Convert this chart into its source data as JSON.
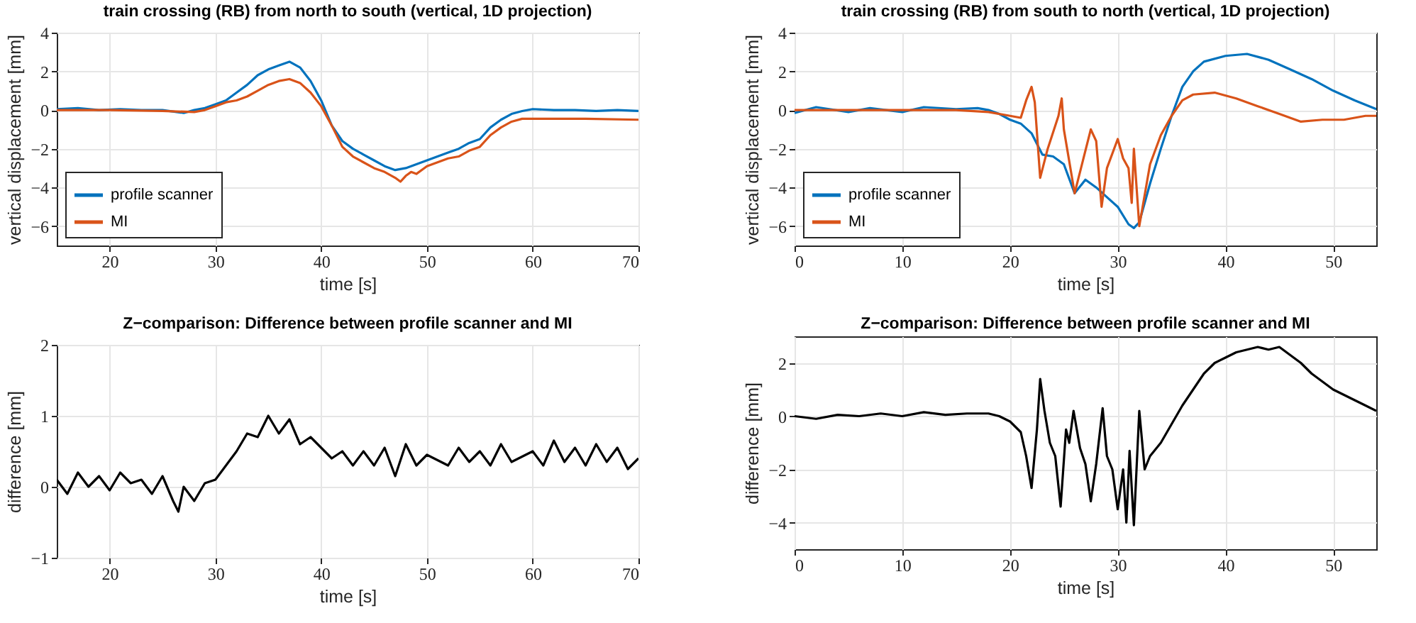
{
  "chart_data": [
    {
      "type": "line",
      "title": "train crossing (RB) from north to south (vertical, 1D projection)",
      "xlabel": "time [s]",
      "ylabel": "vertical displacement [mm]",
      "xlim": [
        15,
        70
      ],
      "xticks": [
        20,
        30,
        40,
        50,
        60,
        70
      ],
      "ylim": [
        -7,
        4
      ],
      "yticks": [
        -6,
        -4,
        -2,
        0,
        2,
        4
      ],
      "grid": true,
      "legend": "bottom left",
      "series": [
        {
          "name": "profile scanner",
          "color": "#0072bd",
          "x": [
            15,
            17,
            19,
            21,
            23,
            25,
            27,
            28,
            29,
            30,
            31,
            32,
            33,
            34,
            35,
            36,
            37,
            38,
            39,
            40,
            41,
            42,
            43,
            44,
            45,
            46,
            47,
            48,
            49,
            50,
            51,
            52,
            53,
            54,
            55,
            56,
            57,
            58,
            59,
            60,
            62,
            64,
            66,
            68,
            70
          ],
          "values": [
            0.05,
            0.1,
            0,
            0.05,
            0,
            0,
            -0.15,
            0,
            0.1,
            0.3,
            0.5,
            0.9,
            1.3,
            1.8,
            2.1,
            2.3,
            2.5,
            2.2,
            1.5,
            0.5,
            -0.8,
            -1.6,
            -2,
            -2.3,
            -2.6,
            -2.9,
            -3.1,
            -3,
            -2.8,
            -2.6,
            -2.4,
            -2.2,
            -2,
            -1.7,
            -1.5,
            -0.9,
            -0.5,
            -0.2,
            -0.05,
            0.05,
            0,
            0,
            -0.05,
            0,
            -0.05
          ]
        },
        {
          "name": "MI",
          "color": "#d95319",
          "x": [
            15,
            20,
            25,
            28,
            29,
            30,
            31,
            32,
            33,
            34,
            35,
            36,
            37,
            38,
            39,
            40,
            41,
            42,
            43,
            44,
            45,
            46,
            47,
            47.5,
            48,
            48.5,
            49,
            50,
            51,
            52,
            53,
            54,
            55,
            56,
            57,
            58,
            59,
            60,
            65,
            70
          ],
          "values": [
            0,
            0,
            -0.05,
            -0.1,
            0,
            0.2,
            0.4,
            0.5,
            0.7,
            1,
            1.3,
            1.5,
            1.6,
            1.4,
            0.9,
            0.2,
            -0.8,
            -1.9,
            -2.4,
            -2.7,
            -3,
            -3.2,
            -3.5,
            -3.7,
            -3.4,
            -3.2,
            -3.3,
            -2.9,
            -2.7,
            -2.5,
            -2.4,
            -2.1,
            -1.9,
            -1.3,
            -0.9,
            -0.6,
            -0.45,
            -0.45,
            -0.45,
            -0.5
          ]
        }
      ]
    },
    {
      "type": "line",
      "title": "train crossing (RB) from south to north (vertical, 1D projection)",
      "xlabel": "time [s]",
      "ylabel": "vertical displacement [mm]",
      "xlim": [
        0,
        54
      ],
      "xticks": [
        0,
        10,
        20,
        30,
        40,
        50
      ],
      "ylim": [
        -7,
        4
      ],
      "yticks": [
        -6,
        -4,
        -2,
        0,
        2,
        4
      ],
      "grid": true,
      "legend": "bottom left",
      "series": [
        {
          "name": "profile scanner",
          "color": "#0072bd",
          "x": [
            0,
            2,
            5,
            7,
            10,
            12,
            15,
            17,
            18,
            19,
            20,
            21,
            22,
            23,
            24,
            25,
            26,
            27,
            28,
            29,
            30,
            31,
            31.5,
            32,
            33,
            34,
            35,
            36,
            37,
            38,
            40,
            42,
            44,
            46,
            48,
            50,
            52,
            54
          ],
          "values": [
            -0.15,
            0.15,
            -0.1,
            0.1,
            -0.1,
            0.15,
            0.05,
            0.1,
            0,
            -0.2,
            -0.5,
            -0.7,
            -1.2,
            -2.3,
            -2.4,
            -2.8,
            -4.3,
            -3.6,
            -4,
            -4.5,
            -5,
            -5.9,
            -6.1,
            -5.8,
            -3.8,
            -2,
            -0.3,
            1.2,
            2,
            2.5,
            2.8,
            2.9,
            2.6,
            2.1,
            1.6,
            1,
            0.5,
            0.05
          ]
        },
        {
          "name": "MI",
          "color": "#d95319",
          "x": [
            0,
            5,
            10,
            15,
            18,
            20,
            21,
            21.5,
            22,
            22.3,
            22.8,
            23.5,
            24.5,
            24.8,
            25,
            26,
            27.5,
            28,
            28.5,
            29,
            30,
            30.5,
            31,
            31.3,
            31.5,
            32,
            33,
            34,
            35,
            36,
            37,
            39,
            41,
            43,
            45,
            47,
            49,
            51,
            53,
            54
          ],
          "values": [
            0,
            0,
            0,
            0,
            -0.1,
            -0.3,
            -0.4,
            0.5,
            1.2,
            0.4,
            -3.5,
            -2,
            -0.3,
            0.6,
            -1,
            -4.3,
            -1,
            -1.6,
            -5,
            -3,
            -1.5,
            -2.5,
            -3,
            -4.8,
            -2,
            -6,
            -2.8,
            -1.3,
            -0.3,
            0.5,
            0.8,
            0.9,
            0.6,
            0.2,
            -0.2,
            -0.6,
            -0.5,
            -0.5,
            -0.3,
            -0.3
          ]
        }
      ]
    },
    {
      "type": "line",
      "title": "Z−comparison: Difference between profile scanner and MI",
      "xlabel": "time [s]",
      "ylabel": "difference [mm]",
      "xlim": [
        15,
        70
      ],
      "xticks": [
        20,
        30,
        40,
        50,
        60,
        70
      ],
      "ylim": [
        -1,
        2
      ],
      "yticks": [
        -1,
        0,
        1,
        2
      ],
      "grid": true,
      "series": [
        {
          "color": "#000000",
          "x": [
            15,
            16,
            17,
            18,
            19,
            20,
            21,
            22,
            23,
            24,
            25,
            26,
            26.5,
            27,
            28,
            29,
            30,
            31,
            32,
            33,
            34,
            35,
            36,
            37,
            38,
            39,
            40,
            41,
            42,
            43,
            44,
            45,
            46,
            47,
            48,
            49,
            50,
            52,
            53,
            54,
            55,
            56,
            57,
            58,
            60,
            61,
            62,
            63,
            64,
            65,
            66,
            67,
            68,
            69,
            70
          ],
          "values": [
            0.1,
            -0.1,
            0.2,
            0,
            0.15,
            -0.05,
            0.2,
            0.05,
            0.1,
            -0.1,
            0.15,
            -0.2,
            -0.35,
            0,
            -0.2,
            0.05,
            0.1,
            0.3,
            0.5,
            0.75,
            0.7,
            1,
            0.75,
            0.95,
            0.6,
            0.7,
            0.55,
            0.4,
            0.5,
            0.3,
            0.5,
            0.3,
            0.55,
            0.15,
            0.6,
            0.3,
            0.45,
            0.3,
            0.55,
            0.35,
            0.5,
            0.3,
            0.6,
            0.35,
            0.5,
            0.3,
            0.65,
            0.35,
            0.55,
            0.3,
            0.6,
            0.35,
            0.55,
            0.25,
            0.4
          ]
        }
      ]
    },
    {
      "type": "line",
      "title": "Z−comparison: Difference between profile scanner and MI",
      "xlabel": "time [s]",
      "ylabel": "difference [mm]",
      "xlim": [
        0,
        54
      ],
      "xticks": [
        0,
        10,
        20,
        30,
        40,
        50
      ],
      "ylim": [
        -5,
        3
      ],
      "yticks": [
        -4,
        -2,
        0,
        2
      ],
      "grid": true,
      "series": [
        {
          "color": "#000000",
          "x": [
            0,
            2,
            4,
            6,
            8,
            10,
            12,
            14,
            16,
            18,
            19,
            20,
            21,
            21.5,
            22,
            22.5,
            22.8,
            23.2,
            23.7,
            24.2,
            24.7,
            25.2,
            25.5,
            25.9,
            26.5,
            27,
            27.5,
            28,
            28.6,
            29,
            29.5,
            30,
            30.5,
            30.8,
            31.1,
            31.5,
            32,
            32.5,
            33,
            34,
            35,
            36,
            37,
            38,
            39,
            40,
            41,
            42,
            43,
            44,
            45,
            46,
            47,
            48,
            49,
            50,
            51,
            52,
            53,
            54
          ],
          "values": [
            0,
            -0.1,
            0.05,
            0,
            0.1,
            0,
            0.15,
            0.05,
            0.1,
            0.1,
            0,
            -0.2,
            -0.6,
            -1.5,
            -2.7,
            -0.5,
            1.4,
            0.2,
            -1,
            -1.5,
            -3.4,
            -0.5,
            -1,
            0.2,
            -1.2,
            -1.8,
            -3.2,
            -1.8,
            0.3,
            -1.5,
            -2,
            -3.5,
            -2,
            -4,
            -1.3,
            -4.1,
            0.2,
            -2,
            -1.5,
            -1,
            -0.3,
            0.4,
            1,
            1.6,
            2,
            2.2,
            2.4,
            2.5,
            2.6,
            2.5,
            2.6,
            2.3,
            2,
            1.6,
            1.3,
            1,
            0.8,
            0.6,
            0.4,
            0.2
          ]
        }
      ]
    }
  ]
}
